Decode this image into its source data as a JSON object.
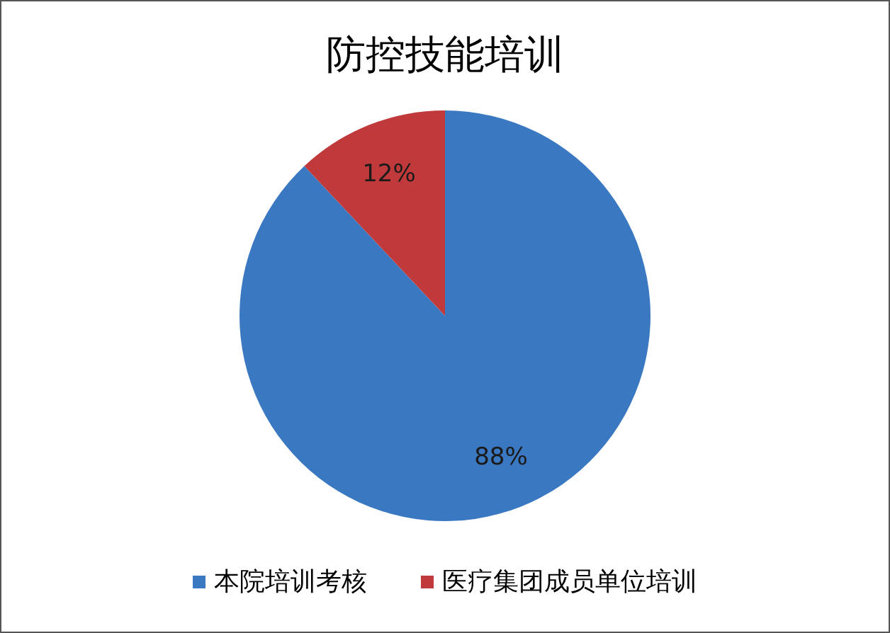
{
  "chart_data": {
    "type": "pie",
    "title": "防控技能培训",
    "categories": [
      "本院培训考核",
      "医疗集团成员单位培训"
    ],
    "values": [
      88,
      12
    ],
    "colors": [
      "#3a78c2",
      "#c0393b"
    ],
    "value_labels": [
      "88%",
      "12%"
    ],
    "legend": "bottom"
  }
}
